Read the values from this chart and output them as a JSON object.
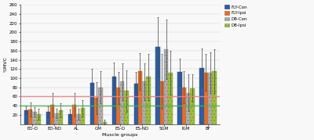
{
  "categories": [
    "EO-D",
    "EO-ND",
    "AL",
    "GM",
    "ES-D",
    "ES-ND",
    "SGM",
    "IGM",
    "BF"
  ],
  "series": {
    "FLY-Con": [
      30,
      27,
      22,
      90,
      104,
      88,
      168,
      113,
      122
    ],
    "FLY-Ipsi": [
      32,
      42,
      42,
      57,
      79,
      115,
      93,
      80,
      112
    ],
    "DB-Con": [
      27,
      23,
      22,
      80,
      93,
      93,
      163,
      68,
      112
    ],
    "DB-Ipsi": [
      22,
      30,
      35,
      5,
      72,
      103,
      112,
      78,
      115
    ]
  },
  "errors": {
    "FLY-Con": [
      8,
      12,
      10,
      30,
      30,
      25,
      65,
      30,
      42
    ],
    "FLY-Ipsi": [
      15,
      25,
      25,
      35,
      35,
      40,
      60,
      35,
      40
    ],
    "DB-Con": [
      10,
      10,
      12,
      35,
      40,
      40,
      65,
      40,
      45
    ],
    "DB-Ipsi": [
      12,
      15,
      18,
      5,
      45,
      50,
      48,
      30,
      48
    ]
  },
  "colors": {
    "FLY-Con": "#2e5fa3",
    "FLY-Ipsi": "#e07030",
    "DB-Con": "#b0b0b0",
    "DB-Ipsi": "#a0c040"
  },
  "hline_pink": 60,
  "hline_green": 40,
  "ylim": [
    0,
    260
  ],
  "yticks": [
    20,
    40,
    60,
    80,
    100,
    120,
    140,
    160,
    180,
    200,
    220,
    240,
    260
  ],
  "ylabel": "%MVC",
  "xlabel": "Muscle groups",
  "bar_width": 0.19,
  "background": "#f7f7f7"
}
